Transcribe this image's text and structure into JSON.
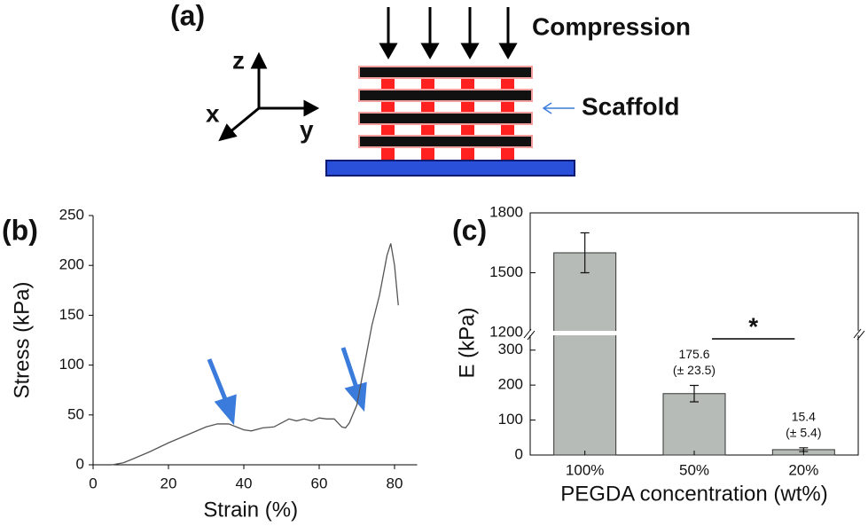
{
  "panel_a": {
    "label": "(a)",
    "compression": "Compression",
    "scaffold": "Scaffold",
    "axes": {
      "x": "x",
      "y": "y",
      "z": "z"
    }
  },
  "chart_data": [
    {
      "type": "line",
      "panel_label": "(b)",
      "xlabel": "Strain (%)",
      "ylabel": "Stress (kPa)",
      "x": [
        5,
        8,
        10,
        15,
        20,
        25,
        30,
        33,
        36,
        38,
        40,
        42,
        45,
        48,
        50,
        52,
        54,
        56,
        58,
        60,
        62,
        64,
        66,
        67,
        68,
        70,
        72,
        74,
        76,
        78,
        79,
        80,
        81
      ],
      "values": [
        0,
        2,
        5,
        13,
        22,
        30,
        38,
        41,
        41,
        38,
        35,
        34,
        37,
        38,
        42,
        46,
        44,
        46,
        44,
        47,
        46,
        46,
        38,
        37,
        42,
        60,
        100,
        140,
        170,
        210,
        222,
        200,
        160
      ],
      "color": "#555555",
      "xlim": [
        0,
        86
      ],
      "ylim": [
        0,
        250
      ],
      "xticks": [
        0,
        20,
        40,
        60,
        80
      ],
      "yticks": [
        0,
        50,
        100,
        150,
        200,
        250
      ]
    },
    {
      "type": "bar",
      "panel_label": "(c)",
      "xlabel": "PEGDA concentration (wt%)",
      "ylabel": "E (kPa)",
      "categories": [
        "100%",
        "50%",
        "20%"
      ],
      "values": [
        1600,
        175.6,
        15.4
      ],
      "errors": [
        100,
        23.5,
        5.4
      ],
      "value_labels": [
        null,
        "175.6",
        "15.4"
      ],
      "error_labels": [
        null,
        "(± 23.5)",
        "(± 5.4)"
      ],
      "color": "#b7bbb7",
      "ylim": [
        0,
        1800
      ],
      "ybreak": [
        350,
        1200
      ],
      "yticks": [
        0,
        100,
        200,
        300,
        1200,
        1500,
        1800
      ],
      "annotation": "*"
    }
  ]
}
